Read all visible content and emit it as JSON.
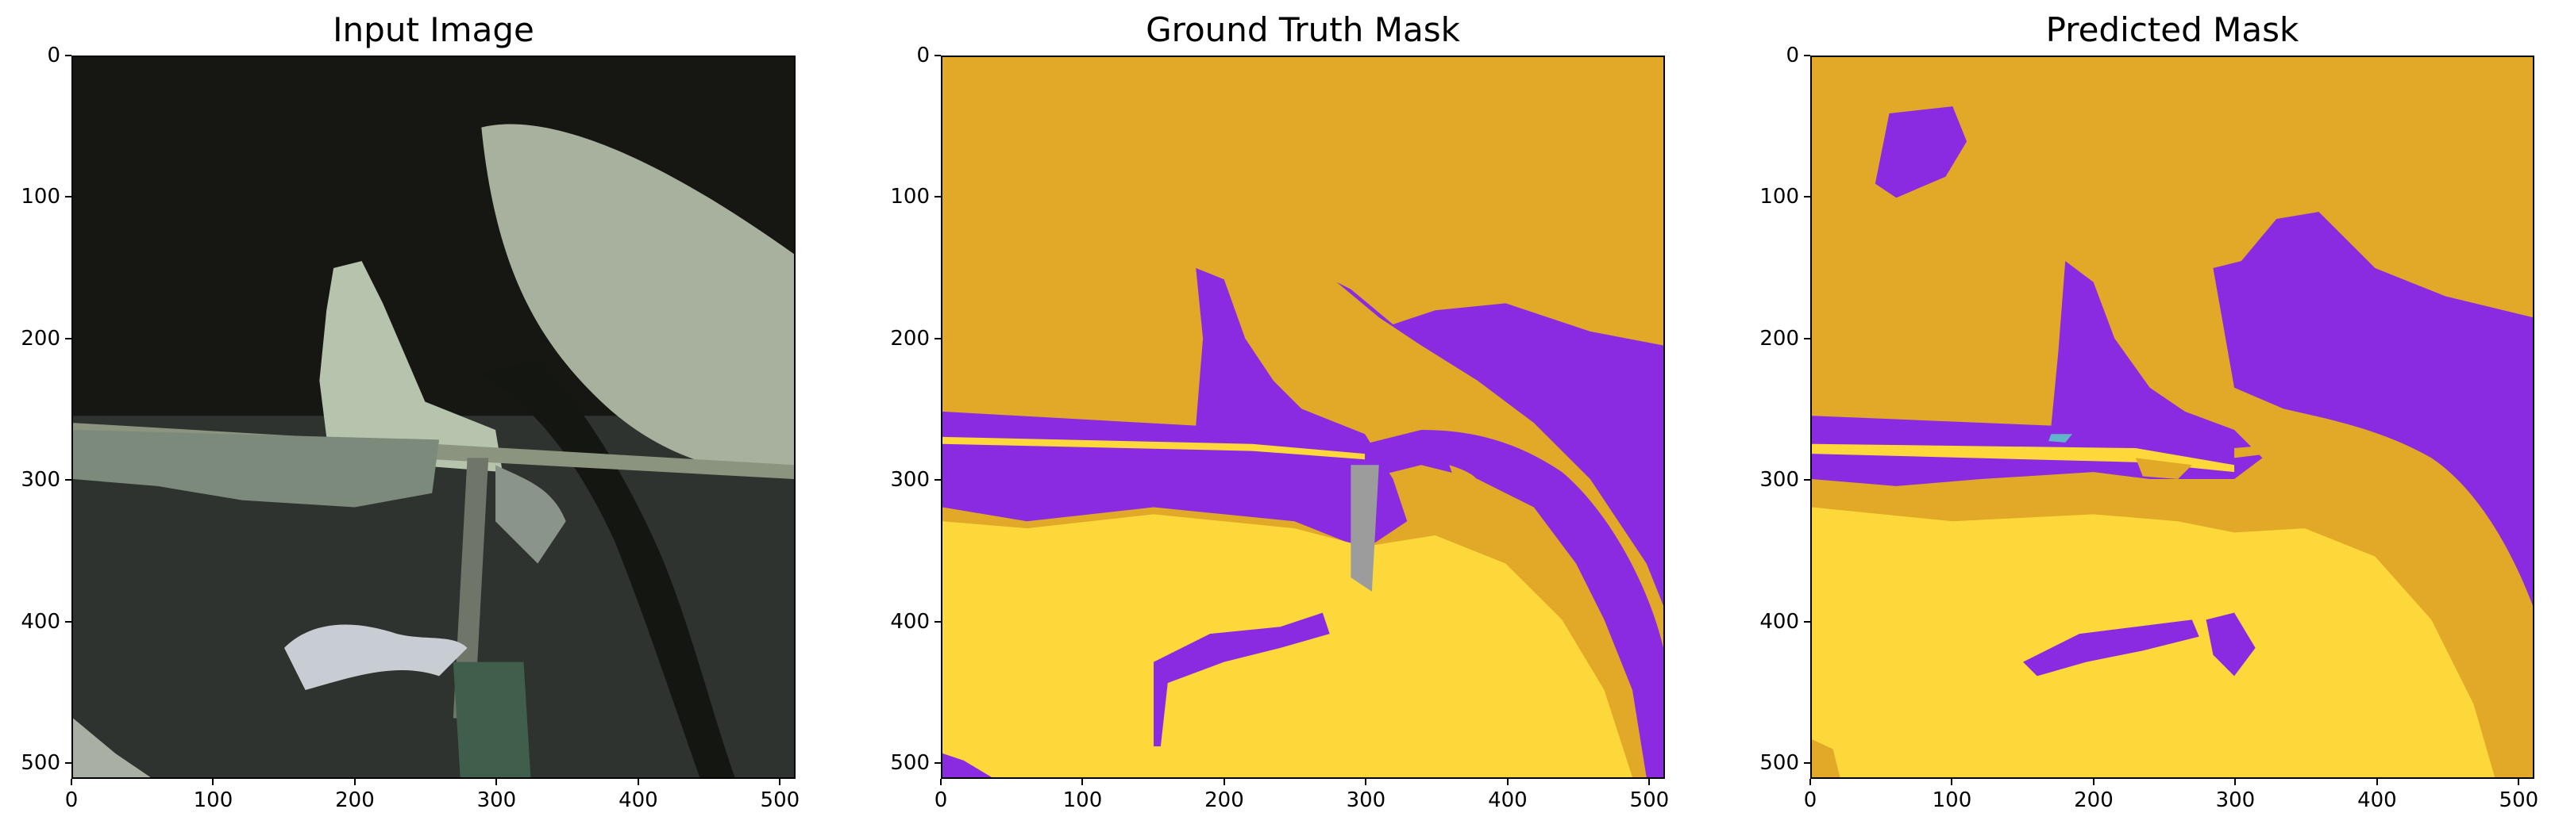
{
  "panels": [
    {
      "title": "Input Image"
    },
    {
      "title": "Ground Truth Mask"
    },
    {
      "title": "Predicted Mask"
    }
  ],
  "axes": {
    "x_ticks": [
      "0",
      "100",
      "200",
      "300",
      "400",
      "500"
    ],
    "y_ticks": [
      "0",
      "100",
      "200",
      "300",
      "400",
      "500"
    ],
    "x_range": [
      0,
      511
    ],
    "y_range": [
      0,
      511
    ]
  },
  "colors": {
    "water_gold": "#e2a828",
    "purple": "#8a2be2",
    "yellow": "#fcd83a",
    "gray": "#9c9c9c",
    "cyan": "#5fb4c9",
    "dark_water": "#1b1c16",
    "forest": "#2f3330",
    "sand": "#a7b19e"
  }
}
